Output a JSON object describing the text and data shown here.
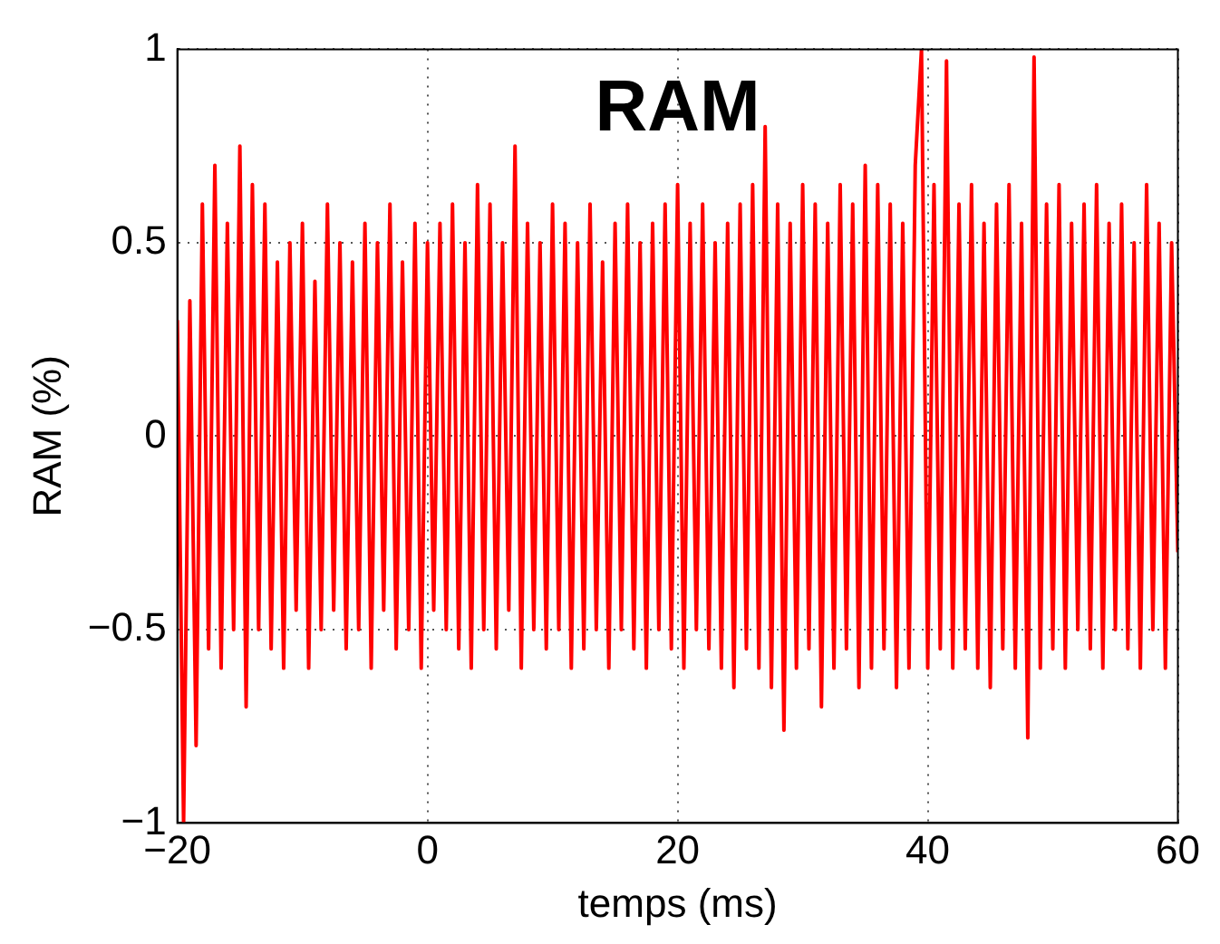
{
  "chart_data": {
    "type": "line",
    "title": "RAM",
    "xlabel": "temps (ms)",
    "ylabel": "RAM (%)",
    "xlim": [
      -20,
      60
    ],
    "xticks": [
      {
        "value": -20,
        "label": "−20"
      },
      0,
      20,
      40,
      60
    ],
    "ylim": [
      -1,
      1
    ],
    "yticks": [
      {
        "value": -1,
        "label": "−1"
      },
      {
        "value": -0.5,
        "label": "−0.5"
      },
      0,
      0.5,
      1
    ],
    "grid": true,
    "legend": false,
    "marker": "none",
    "line_style": "solid",
    "x": [
      -20,
      -19.5,
      -19,
      -18.5,
      -18,
      -17.5,
      -17,
      -16.5,
      -16,
      -15.5,
      -15,
      -14.5,
      -14,
      -13.5,
      -13,
      -12.5,
      -12,
      -11.5,
      -11,
      -10.5,
      -10,
      -9.5,
      -9,
      -8.5,
      -8,
      -7.5,
      -7,
      -6.5,
      -6,
      -5.5,
      -5,
      -4.5,
      -4,
      -3.5,
      -3,
      -2.5,
      -2,
      -1.5,
      -1,
      -0.5,
      0,
      0.5,
      1,
      1.5,
      2,
      2.5,
      3,
      3.5,
      4,
      4.5,
      5,
      5.5,
      6,
      6.5,
      7,
      7.5,
      8,
      8.5,
      9,
      9.5,
      10,
      10.5,
      11,
      11.5,
      12,
      12.5,
      13,
      13.5,
      14,
      14.5,
      15,
      15.5,
      16,
      16.5,
      17,
      17.5,
      18,
      18.5,
      19,
      19.5,
      20,
      20.5,
      21,
      21.5,
      22,
      22.5,
      23,
      23.5,
      24,
      24.5,
      25,
      25.5,
      26,
      26.5,
      27,
      27.5,
      28,
      28.5,
      29,
      29.5,
      30,
      30.5,
      31,
      31.5,
      32,
      32.5,
      33,
      33.5,
      34,
      34.5,
      35,
      35.5,
      36,
      36.5,
      37,
      37.5,
      38,
      38.5,
      39,
      39.5,
      40,
      40.5,
      41,
      41.5,
      42,
      42.5,
      43,
      43.5,
      44,
      44.5,
      45,
      45.5,
      46,
      46.5,
      47,
      47.5,
      48,
      48.5,
      49,
      49.5,
      50,
      50.5,
      51,
      51.5,
      52,
      52.5,
      53,
      53.5,
      54,
      54.5,
      55,
      55.5,
      56,
      56.5,
      57,
      57.5,
      58,
      58.5,
      59,
      59.5,
      60
    ],
    "series": [
      {
        "color": "#ff0000",
        "values": [
          0.3,
          -1.0,
          0.35,
          -0.8,
          0.6,
          -0.55,
          0.7,
          -0.6,
          0.55,
          -0.5,
          0.75,
          -0.7,
          0.65,
          -0.5,
          0.6,
          -0.55,
          0.45,
          -0.6,
          0.5,
          -0.45,
          0.55,
          -0.6,
          0.4,
          -0.5,
          0.6,
          -0.45,
          0.5,
          -0.55,
          0.45,
          -0.5,
          0.55,
          -0.6,
          0.5,
          -0.45,
          0.6,
          -0.55,
          0.45,
          -0.5,
          0.55,
          -0.6,
          0.5,
          -0.45,
          0.55,
          -0.5,
          0.6,
          -0.55,
          0.5,
          -0.6,
          0.65,
          -0.5,
          0.6,
          -0.55,
          0.5,
          -0.45,
          0.75,
          -0.6,
          0.55,
          -0.5,
          0.5,
          -0.55,
          0.6,
          -0.5,
          0.55,
          -0.6,
          0.5,
          -0.55,
          0.6,
          -0.5,
          0.45,
          -0.6,
          0.55,
          -0.5,
          0.6,
          -0.55,
          0.5,
          -0.6,
          0.55,
          -0.5,
          0.6,
          -0.55,
          0.65,
          -0.6,
          0.55,
          -0.5,
          0.6,
          -0.55,
          0.5,
          -0.6,
          0.55,
          -0.65,
          0.6,
          -0.55,
          0.65,
          -0.6,
          0.8,
          -0.65,
          0.6,
          -0.76,
          0.55,
          -0.6,
          0.65,
          -0.55,
          0.6,
          -0.7,
          0.55,
          -0.6,
          0.65,
          -0.55,
          0.6,
          -0.65,
          0.7,
          -0.6,
          0.65,
          -0.55,
          0.6,
          -0.65,
          0.55,
          -0.6,
          0.7,
          1.0,
          -0.6,
          0.65,
          -0.55,
          0.97,
          -0.6,
          0.6,
          -0.55,
          0.65,
          -0.6,
          0.55,
          -0.65,
          0.6,
          -0.55,
          0.65,
          -0.6,
          0.55,
          -0.78,
          0.98,
          -0.6,
          0.6,
          -0.55,
          0.65,
          -0.6,
          0.55,
          -0.5,
          0.6,
          -0.55,
          0.65,
          -0.6,
          0.55,
          -0.5,
          0.6,
          -0.55,
          0.5,
          -0.6,
          0.65,
          -0.5,
          0.55,
          -0.6,
          0.5,
          -0.3
        ]
      }
    ]
  }
}
